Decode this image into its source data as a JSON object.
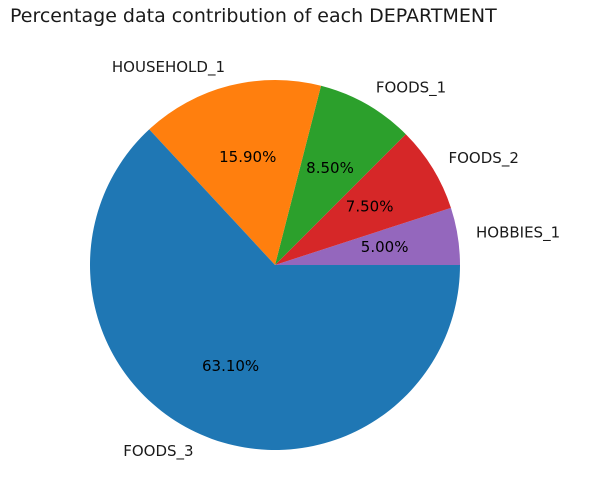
{
  "chart_data": {
    "type": "pie",
    "title": "Percentage data contribution of each DEPARTMENT",
    "categories": [
      "HOBBIES_1",
      "FOODS_2",
      "FOODS_1",
      "HOUSEHOLD_1",
      "FOODS_3"
    ],
    "values": [
      5.0,
      7.5,
      8.5,
      15.9,
      63.1
    ],
    "percent_labels": [
      "5.00%",
      "7.50%",
      "8.50%",
      "15.90%",
      "63.10%"
    ],
    "colors": [
      "#9467bd",
      "#d62728",
      "#2ca02c",
      "#ff7f0e",
      "#1f77b4"
    ],
    "start_angle_deg": 0,
    "direction": "counterclockwise"
  }
}
